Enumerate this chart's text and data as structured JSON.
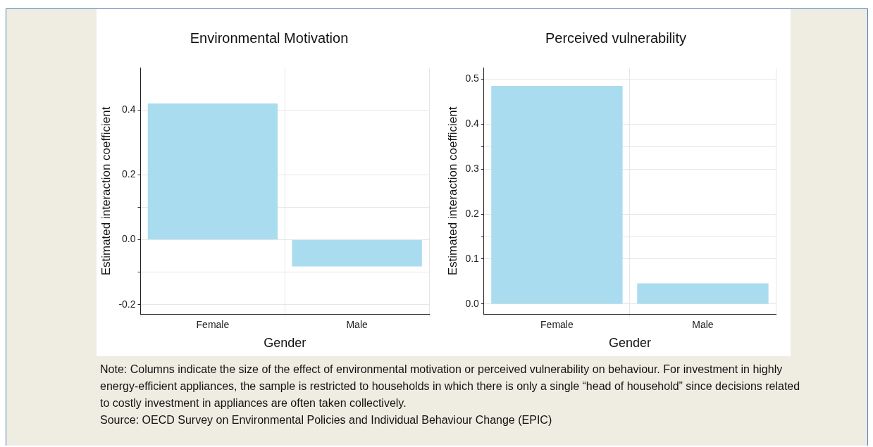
{
  "chart_data": [
    {
      "type": "bar",
      "title": "Environmental Motivation",
      "xlabel": "Gender",
      "ylabel": "Estimated interaction coefficient",
      "categories": [
        "Female",
        "Male"
      ],
      "values": [
        0.42,
        -0.082
      ],
      "color": "#a9dcef",
      "ylim": [
        -0.23,
        0.53
      ],
      "yticks": [
        -0.2,
        {
          "value": -0.1,
          "label": null
        },
        {
          "value": 0,
          "label": "0.0"
        },
        {
          "value": 0.1,
          "label": null
        },
        0.2,
        0.4
      ],
      "grid": true,
      "legend": false,
      "annotations": [
        "Note: Columns indicate the size of the effect of environmental motivation or perceived vulnerability on behaviour. For investment in highly energy-efficient appliances, the sample is restricted to households in which there is only a single “head of household” since decisions related to costly investment in appliances are often taken collectively.",
        "Source: OECD Survey on Environmental Policies and Individual Behaviour Change (EPIC)"
      ]
    },
    {
      "type": "bar",
      "title": "Perceived vulnerability",
      "xlabel": "Gender",
      "ylabel": "Estimated interaction coefficient",
      "categories": [
        "Female",
        "Male"
      ],
      "values": [
        0.485,
        0.046
      ],
      "color": "#a9dcef",
      "ylim": [
        -0.023,
        0.525
      ],
      "yticks": [
        {
          "value": 0,
          "label": "0.0"
        },
        0.1,
        {
          "value": 0.15,
          "label": null
        },
        0.2,
        0.3,
        {
          "value": 0.35,
          "label": null
        },
        0.4,
        0.5
      ],
      "grid": true,
      "legend": false
    }
  ]
}
